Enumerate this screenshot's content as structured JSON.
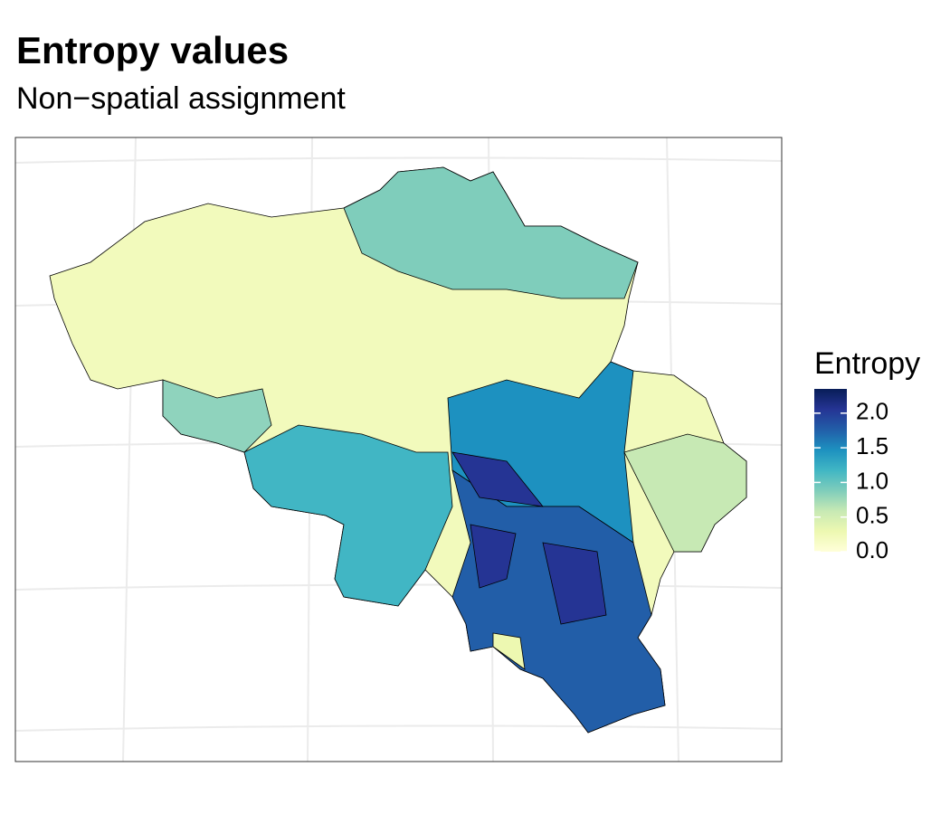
{
  "title": "Entropy values",
  "subtitle": "Non−spatial assignment",
  "legend": {
    "title": "Entropy",
    "range": [
      0,
      2.35
    ],
    "colors": [
      "#ffffd9",
      "#edf8b1",
      "#c7e9b4",
      "#7fcdbb",
      "#41b6c4",
      "#1d91c0",
      "#225ea8",
      "#253494",
      "#081d58"
    ],
    "ticks": [
      {
        "value": 0,
        "label": "0.0"
      },
      0.5,
      {
        "value": 1,
        "label": "1.0"
      },
      1.5,
      {
        "value": 2,
        "label": "2.0"
      }
    ]
  }
}
